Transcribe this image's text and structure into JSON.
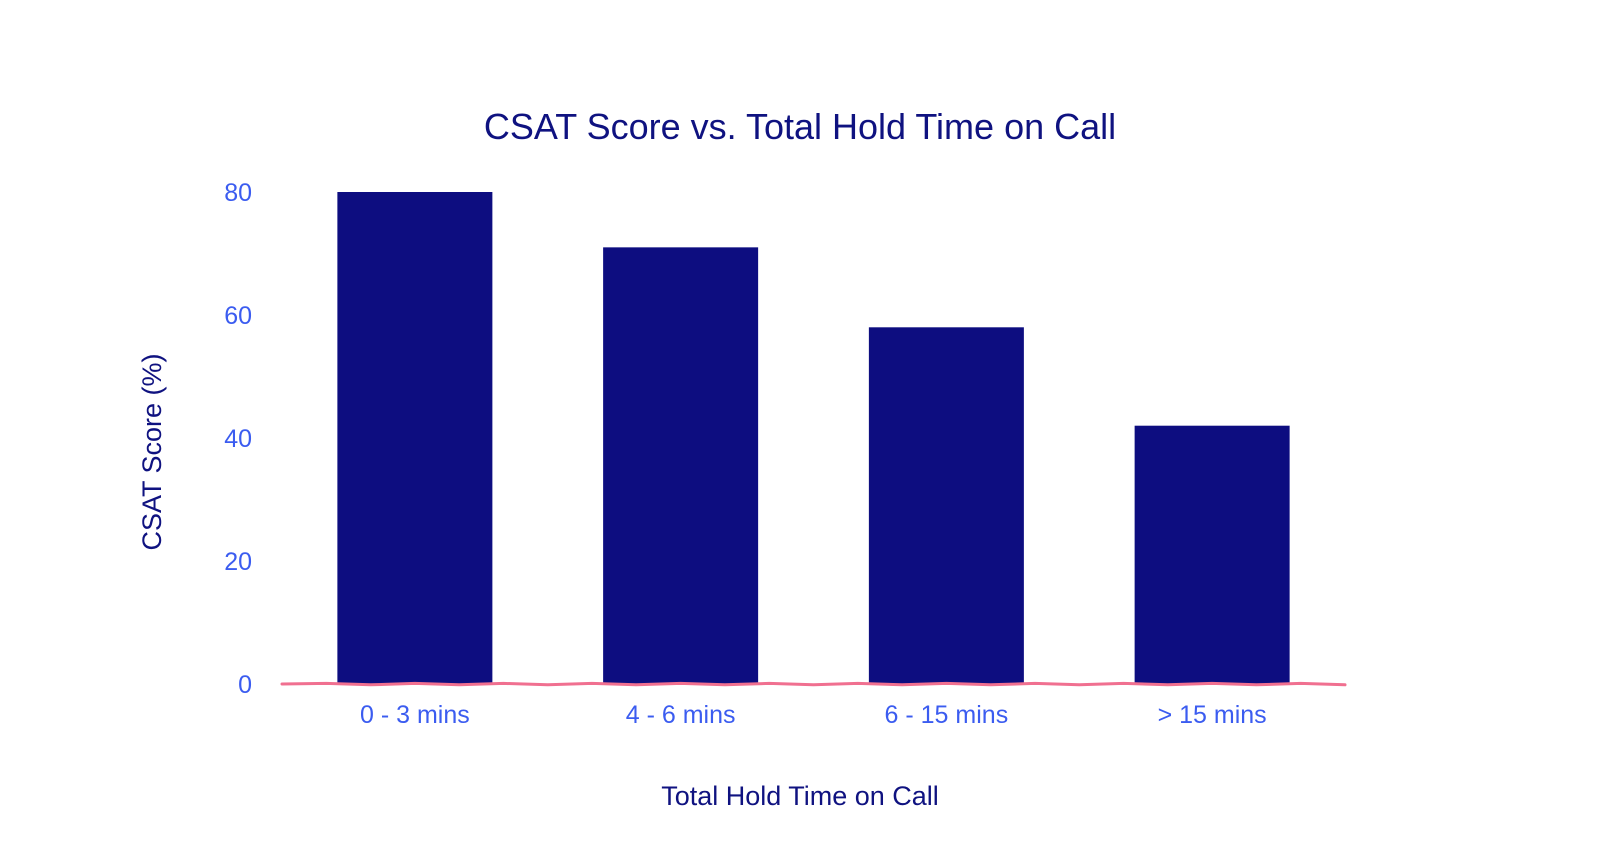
{
  "chart_data": {
    "type": "bar",
    "title": "CSAT Score vs. Total Hold Time on Call",
    "xlabel": "Total Hold Time on Call",
    "ylabel": "CSAT Score (%)",
    "categories": [
      "0 - 3 mins",
      "4 - 6 mins",
      "6 - 15 mins",
      "> 15 mins"
    ],
    "values": [
      80,
      71,
      58,
      42
    ],
    "yticks": [
      "0",
      "20",
      "40",
      "60",
      "80"
    ],
    "ylim": [
      0,
      80
    ],
    "grid": false,
    "colors": {
      "bar": "#0d0d80",
      "title": "#0f1280",
      "tick_labels": "#3b5cf0",
      "baseline": "#f07090"
    }
  }
}
